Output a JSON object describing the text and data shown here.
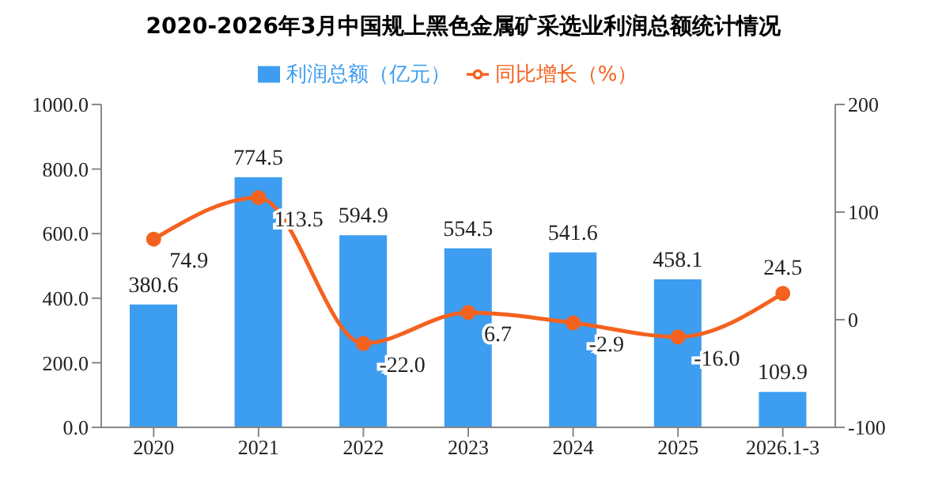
{
  "chart_data": {
    "type": "bar",
    "title": "2020-2026年3月中国规上黑色金属矿采选业利润总额统计情况",
    "categories": [
      "2020",
      "2021",
      "2022",
      "2023",
      "2024",
      "2025",
      "2026.1-3"
    ],
    "series": [
      {
        "name": "利润总额（亿元）",
        "color": "#3d9df0",
        "values": [
          380.6,
          774.5,
          594.9,
          554.5,
          541.6,
          458.1,
          109.9
        ],
        "value_labels": [
          "380.6",
          "774.5",
          "594.9",
          "554.5",
          "541.6",
          "458.1",
          "109.9"
        ]
      },
      {
        "name": "同比增长（%）",
        "type": "line",
        "axis": "y2",
        "color": "#f4621f",
        "values": [
          74.9,
          113.5,
          -22.0,
          6.7,
          -2.9,
          -16.0,
          24.5
        ],
        "value_labels": [
          "74.9",
          "113.5",
          "-22.0",
          "6.7",
          "-2.9",
          "-16.0",
          "24.5"
        ]
      }
    ],
    "ylim": [
      0,
      1000
    ],
    "yticks": [
      {
        "value": 0,
        "label": "0.0"
      },
      {
        "value": 200,
        "label": "200.0"
      },
      {
        "value": 400,
        "label": "400.0"
      },
      {
        "value": 600,
        "label": "600.0"
      },
      {
        "value": 800,
        "label": "800.0"
      },
      {
        "value": 1000,
        "label": "1000.0"
      }
    ],
    "y2lim": [
      -100,
      200
    ],
    "y2ticks": [
      -100,
      0,
      100,
      200
    ],
    "legend": "top",
    "marker": "circle",
    "grid": false
  }
}
